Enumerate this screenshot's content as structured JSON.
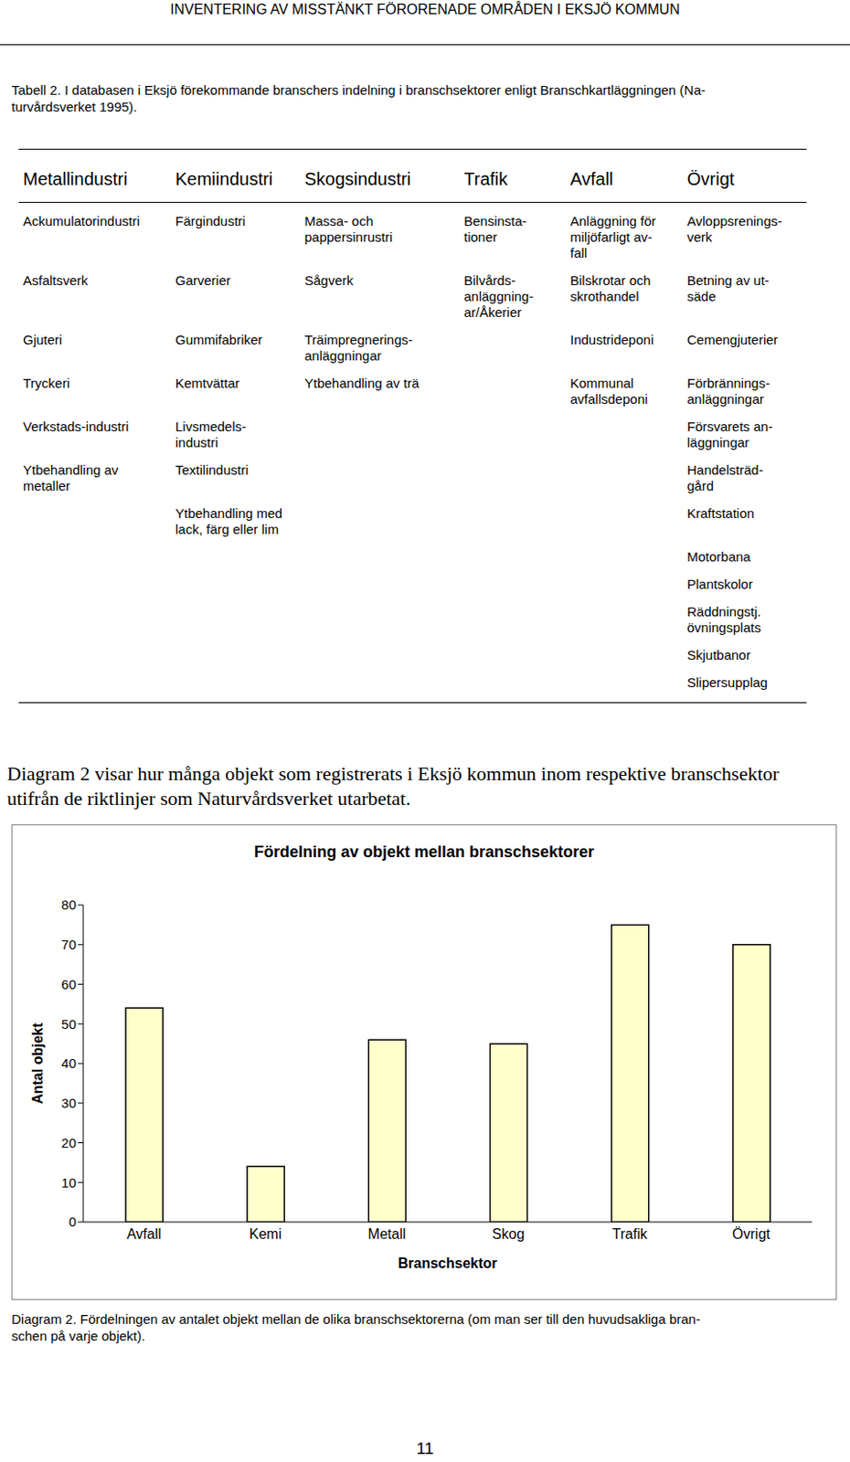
{
  "header": {
    "title": "INVENTERING AV MISSTÄNKT FÖRORENADE OMRÅDEN I EKSJÖ KOMMUN"
  },
  "table_caption": "Tabell 2. I databasen i Eksjö förekommande branschers indelning i branschsektorer enligt Branschkartläggningen (Na-\nturvårdsverket 1995).",
  "table": {
    "columns": [
      {
        "header": "Metallindustri",
        "items": [
          "Ackumulatorindustri",
          "Asfaltsverk",
          "Gjuteri",
          "Tryckeri",
          "Verkstads-industri",
          "Ytbehandling av\nmetaller"
        ]
      },
      {
        "header": "Kemiindustri",
        "items": [
          "Färgindustri",
          "Garverier",
          "Gummifabriker",
          "Kemtvättar",
          "Livsmedels-\nindustri",
          "Textilindustri",
          "Ytbehandling med\nlack, färg eller lim"
        ]
      },
      {
        "header": "Skogsindustri",
        "items": [
          "Massa- och\npappersinrustri",
          "Sågverk",
          "Träimpregnerings-\nanläggningar",
          "Ytbehandling av trä"
        ]
      },
      {
        "header": "Trafik",
        "items": [
          "Bensinsta-\ntioner",
          "Bilvårds-\nanläggning-\nar/Åkerier"
        ]
      },
      {
        "header": "Avfall",
        "items": [
          "Anläggning för\nmiljöfarligt av-\nfall",
          "Bilskrotar och\nskrothandel",
          "Industrideponi",
          "Kommunal\navfallsdeponi"
        ]
      },
      {
        "header": "Övrigt",
        "items": [
          "Avloppsrenings-\nverk",
          "Betning av ut-\nsäde",
          "Cemengjuterier",
          "Förbrännings-\nanläggningar",
          "Försvarets an-\nläggningar",
          "Handelsträd-\ngård",
          "Kraftstation",
          "Motorbana",
          "Plantskolor",
          "Räddningstj.\növningsplats",
          "Skjutbanor",
          "Slipersupplag"
        ]
      }
    ]
  },
  "paragraph": "Diagram 2 visar hur många objekt som registrerats i Eksjö kommun inom respektive branschsektor utifrån de riktlinjer som Naturvårdsverket utarbetat.",
  "chart_data": {
    "type": "bar",
    "title": "Fördelning av objekt mellan branschsektorer",
    "x_label": "Branschsektor",
    "y_label": "Antal objekt",
    "categories": [
      "Avfall",
      "Kemi",
      "Metall",
      "Skog",
      "Trafik",
      "Övrigt"
    ],
    "values": [
      54,
      14,
      46,
      45,
      75,
      70
    ],
    "color": "#ffffcc",
    "ylim": [
      0,
      80
    ],
    "yticks": [
      0,
      10,
      20,
      30,
      40,
      50,
      60,
      70,
      80
    ],
    "grid": false
  },
  "chart_caption": "Diagram 2. Fördelningen av antalet objekt mellan de olika branschsektorerna (om man ser till den huvudsakliga bran-\nschen på varje objekt).",
  "page_number": "11"
}
